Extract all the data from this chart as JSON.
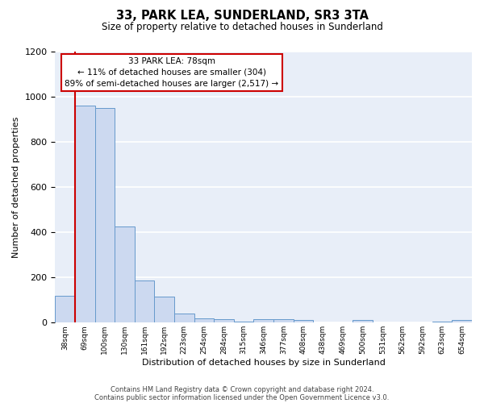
{
  "title": "33, PARK LEA, SUNDERLAND, SR3 3TA",
  "subtitle": "Size of property relative to detached houses in Sunderland",
  "xlabel": "Distribution of detached houses by size in Sunderland",
  "ylabel": "Number of detached properties",
  "footnote1": "Contains HM Land Registry data © Crown copyright and database right 2024.",
  "footnote2": "Contains public sector information licensed under the Open Government Licence v3.0.",
  "categories": [
    "38sqm",
    "69sqm",
    "100sqm",
    "130sqm",
    "161sqm",
    "192sqm",
    "223sqm",
    "254sqm",
    "284sqm",
    "315sqm",
    "346sqm",
    "377sqm",
    "408sqm",
    "438sqm",
    "469sqm",
    "500sqm",
    "531sqm",
    "562sqm",
    "592sqm",
    "623sqm",
    "654sqm"
  ],
  "values": [
    120,
    960,
    950,
    425,
    185,
    115,
    42,
    20,
    17,
    5,
    14,
    14,
    10,
    2,
    2,
    10,
    2,
    2,
    2,
    5,
    12
  ],
  "bar_color": "#ccd9f0",
  "bar_edge_color": "#6699cc",
  "fig_bg_color": "#ffffff",
  "plot_bg_color": "#e8eef8",
  "grid_color": "#ffffff",
  "annotation_text": "33 PARK LEA: 78sqm\n← 11% of detached houses are smaller (304)\n89% of semi-detached houses are larger (2,517) →",
  "annotation_box_color": "#ffffff",
  "annotation_box_edge": "#cc0000",
  "red_line_x": 0.5,
  "ylim": [
    0,
    1200
  ],
  "yticks": [
    0,
    200,
    400,
    600,
    800,
    1000,
    1200
  ]
}
